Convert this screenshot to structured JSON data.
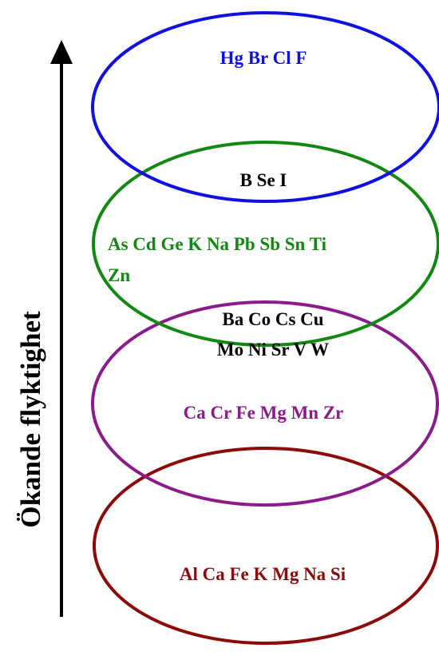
{
  "axis": {
    "title": "Ökande flyktighet"
  },
  "groups": [
    {
      "id": "top",
      "color": "#1010e0",
      "lines": [
        "Hg Br Cl F"
      ]
    },
    {
      "id": "upper-mid",
      "color": "#118811",
      "lines": [
        "As Cd Ge K Na Pb Sb Sn Ti",
        "Zn"
      ]
    },
    {
      "id": "lower-mid",
      "color": "#8b1a8b",
      "lines": [
        "Ca Cr Fe Mg Mn  Zr"
      ]
    },
    {
      "id": "bottom",
      "color": "#8b0a0a",
      "lines": [
        "Al Ca Fe K Mg Na Si"
      ]
    }
  ],
  "overlaps": [
    {
      "between": "top / upper-mid",
      "color": "#000000",
      "lines": [
        "B Se I"
      ]
    },
    {
      "between": "upper-mid / lower-mid",
      "color": "#000000",
      "lines": [
        "Ba Co Cs Cu",
        "Mo Ni Sr V W"
      ]
    }
  ]
}
